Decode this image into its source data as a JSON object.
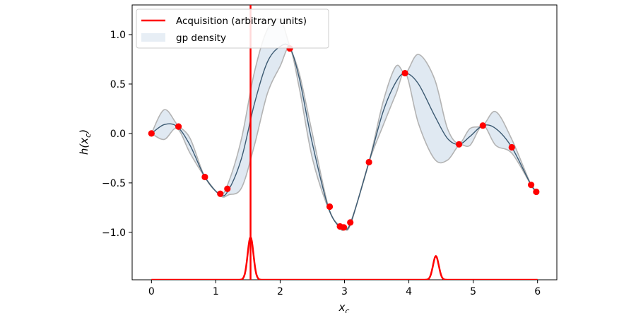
{
  "chart_data": {
    "type": "line",
    "xlabel": "x_c",
    "ylabel": "h(x_c)",
    "xlim": [
      -0.3,
      6.3
    ],
    "ylim": [
      -1.48,
      1.3
    ],
    "xticks": [
      "0",
      "1",
      "2",
      "3",
      "4",
      "5",
      "6"
    ],
    "yticks": [
      "1.0",
      "0.5",
      "0.0",
      "−0.5",
      "−1.0"
    ],
    "legend": {
      "placement": "top-left",
      "entries": [
        {
          "label": "Acquisition (arbitrary units)",
          "color": "#ff0000"
        },
        {
          "label": "gp density",
          "color": "#d6e2ee"
        }
      ]
    },
    "gp_mean": {
      "x": [
        0,
        0.2,
        0.4,
        0.6,
        0.83,
        1.07,
        1.2,
        1.4,
        1.6,
        1.8,
        2.0,
        2.15,
        2.3,
        2.5,
        2.75,
        2.93,
        3.0,
        3.1,
        3.38,
        3.6,
        3.8,
        3.95,
        4.15,
        4.4,
        4.6,
        4.78,
        4.95,
        5.15,
        5.35,
        5.6,
        5.9,
        6.0
      ],
      "y": [
        0.0,
        0.09,
        0.07,
        -0.12,
        -0.44,
        -0.62,
        -0.57,
        -0.25,
        0.3,
        0.72,
        0.88,
        0.87,
        0.55,
        -0.1,
        -0.75,
        -0.95,
        -0.96,
        -0.9,
        -0.29,
        0.22,
        0.52,
        0.61,
        0.5,
        0.18,
        -0.05,
        -0.11,
        -0.03,
        0.08,
        0.05,
        -0.14,
        -0.52,
        -0.59
      ]
    },
    "gp_upper": {
      "x": [
        0,
        0.2,
        0.4,
        0.6,
        0.83,
        1.07,
        1.2,
        1.4,
        1.6,
        1.8,
        2.0,
        2.15,
        2.3,
        2.5,
        2.75,
        2.93,
        3.0,
        3.1,
        3.38,
        3.6,
        3.8,
        3.95,
        4.15,
        4.4,
        4.6,
        4.78,
        4.95,
        5.15,
        5.35,
        5.6,
        5.9,
        6.0
      ],
      "y": [
        0.0,
        0.24,
        0.09,
        -0.05,
        -0.44,
        -0.61,
        -0.49,
        -0.05,
        0.62,
        1.05,
        1.15,
        0.88,
        0.6,
        0.0,
        -0.74,
        -0.94,
        -0.95,
        -0.89,
        -0.29,
        0.32,
        0.68,
        0.61,
        0.8,
        0.55,
        0.05,
        -0.1,
        0.05,
        0.08,
        0.22,
        -0.06,
        -0.52,
        -0.59
      ]
    },
    "gp_lower": {
      "x": [
        0,
        0.2,
        0.4,
        0.6,
        0.83,
        1.07,
        1.2,
        1.4,
        1.6,
        1.8,
        2.0,
        2.15,
        2.3,
        2.5,
        2.75,
        2.93,
        3.0,
        3.1,
        3.38,
        3.6,
        3.8,
        3.95,
        4.15,
        4.4,
        4.6,
        4.78,
        4.95,
        5.15,
        5.35,
        5.6,
        5.9,
        6.0
      ],
      "y": [
        0.0,
        -0.06,
        0.05,
        -0.2,
        -0.44,
        -0.63,
        -0.62,
        -0.55,
        -0.12,
        0.4,
        0.68,
        0.86,
        0.45,
        -0.25,
        -0.76,
        -0.96,
        -0.97,
        -0.91,
        -0.29,
        0.08,
        0.4,
        0.61,
        0.1,
        -0.26,
        -0.27,
        -0.12,
        -0.12,
        0.08,
        -0.12,
        -0.2,
        -0.52,
        -0.59
      ]
    },
    "observations": {
      "x": [
        0.0,
        0.42,
        0.83,
        1.07,
        1.18,
        2.15,
        2.77,
        2.93,
        2.99,
        3.09,
        3.38,
        3.94,
        4.78,
        5.15,
        5.6,
        5.9,
        5.98
      ],
      "y": [
        0.0,
        0.07,
        -0.44,
        -0.61,
        -0.56,
        0.86,
        -0.74,
        -0.94,
        -0.95,
        -0.9,
        -0.29,
        0.61,
        -0.11,
        0.08,
        -0.14,
        -0.52,
        -0.59
      ]
    },
    "acquisition": {
      "baseline": -1.48,
      "peaks": [
        {
          "x": 1.54,
          "height": 0.43,
          "width": 0.045
        },
        {
          "x": 4.42,
          "height": 0.24,
          "width": 0.045
        }
      ],
      "x_range": [
        0,
        6
      ]
    },
    "vline_x": 1.54
  }
}
